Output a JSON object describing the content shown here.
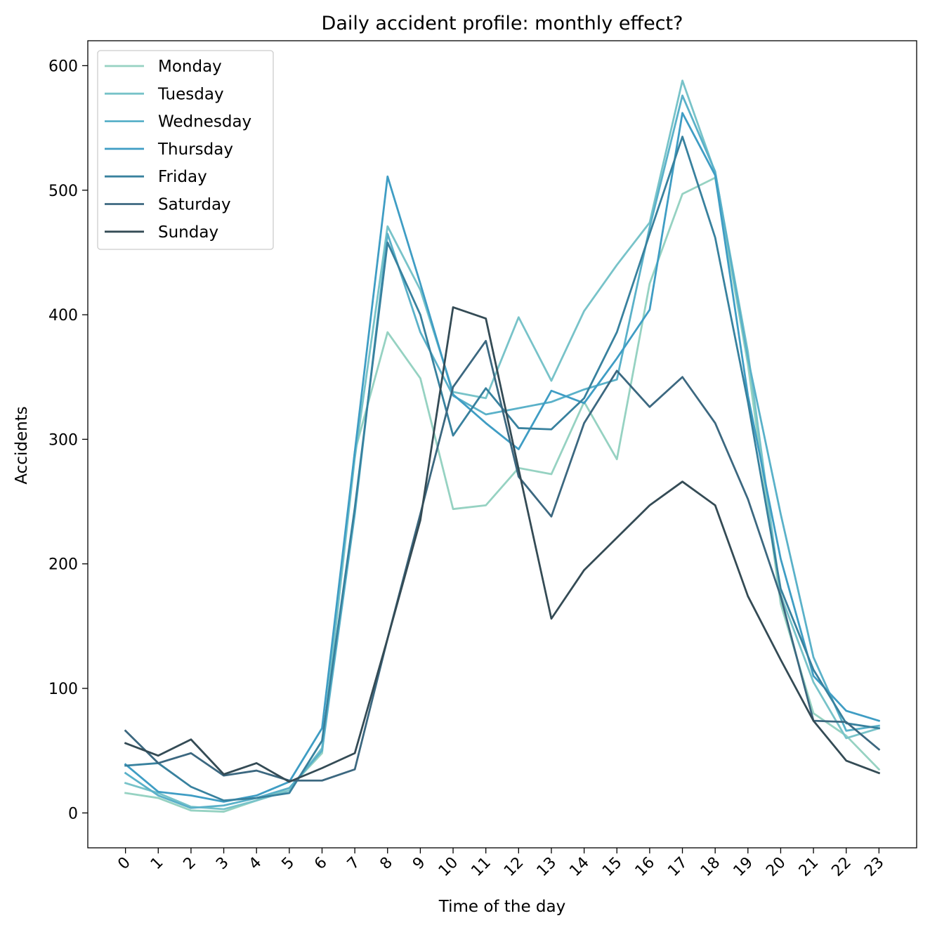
{
  "chart_data": {
    "type": "line",
    "title": "Daily accident profile: monthly effect?",
    "xlabel": "Time of the day",
    "ylabel": "Accidents",
    "x": [
      0,
      1,
      2,
      3,
      4,
      5,
      6,
      7,
      8,
      9,
      10,
      11,
      12,
      13,
      14,
      15,
      16,
      17,
      18,
      19,
      20,
      21,
      22,
      23
    ],
    "x_tick_labels": [
      "0",
      "1",
      "2",
      "3",
      "4",
      "5",
      "6",
      "7",
      "8",
      "9",
      "10",
      "11",
      "12",
      "13",
      "14",
      "15",
      "16",
      "17",
      "18",
      "19",
      "20",
      "21",
      "22",
      "23"
    ],
    "ylim": [
      -28,
      620
    ],
    "y_ticks": [
      0,
      100,
      200,
      300,
      400,
      500,
      600
    ],
    "grid": false,
    "legend_position": "upper-left",
    "series": [
      {
        "name": "Monday",
        "color": "#96d2c2",
        "values": [
          16,
          12,
          2,
          1,
          10,
          20,
          48,
          290,
          386,
          349,
          244,
          247,
          277,
          272,
          330,
          284,
          425,
          497,
          510,
          360,
          168,
          80,
          62,
          35
        ]
      },
      {
        "name": "Tuesday",
        "color": "#78c3c9",
        "values": [
          24,
          16,
          5,
          3,
          10,
          18,
          52,
          285,
          471,
          420,
          338,
          333,
          398,
          347,
          403,
          440,
          474,
          588,
          514,
          370,
          175,
          105,
          60,
          68
        ]
      },
      {
        "name": "Wednesday",
        "color": "#5ab1c9",
        "values": [
          32,
          14,
          4,
          6,
          12,
          20,
          50,
          240,
          465,
          386,
          335,
          320,
          325,
          330,
          340,
          348,
          470,
          576,
          515,
          365,
          240,
          125,
          66,
          70
        ]
      },
      {
        "name": "Thursday",
        "color": "#3f9dc4",
        "values": [
          39,
          17,
          14,
          9,
          14,
          25,
          68,
          290,
          511,
          425,
          336,
          313,
          292,
          339,
          329,
          365,
          404,
          562,
          512,
          335,
          204,
          110,
          82,
          74
        ]
      },
      {
        "name": "Friday",
        "color": "#38819e",
        "values": [
          38,
          40,
          21,
          10,
          12,
          16,
          58,
          245,
          458,
          400,
          303,
          341,
          309,
          308,
          333,
          386,
          465,
          543,
          462,
          330,
          180,
          115,
          72,
          68
        ]
      },
      {
        "name": "Saturday",
        "color": "#3c6880",
        "values": [
          66,
          40,
          48,
          30,
          34,
          26,
          26,
          35,
          140,
          240,
          342,
          379,
          270,
          238,
          313,
          355,
          326,
          350,
          313,
          252,
          174,
          74,
          73,
          51
        ]
      },
      {
        "name": "Sunday",
        "color": "#344b55",
        "values": [
          56,
          46,
          59,
          31,
          40,
          25,
          36,
          48,
          140,
          235,
          406,
          397,
          276,
          156,
          195,
          221,
          247,
          266,
          247,
          174,
          123,
          74,
          42,
          32
        ]
      }
    ]
  }
}
